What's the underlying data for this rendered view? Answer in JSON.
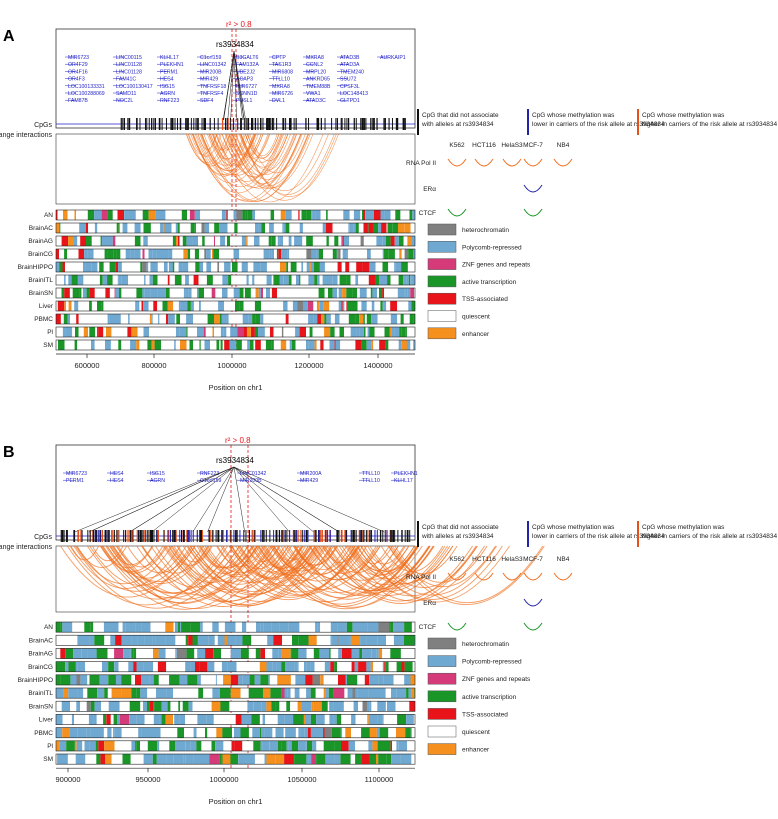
{
  "panels": [
    {
      "letter": "A",
      "r2_label": "r² > 0.8",
      "snp_label": "rs3934834",
      "genes": [
        "MIR6723",
        "OR4F29",
        "OR4F16",
        "OR4F3",
        "LOC100133331",
        "LOC100288069",
        "FAM87B",
        "LINC00115",
        "LINC01128",
        "LINC01128",
        "FAM41C",
        "LOC100130417",
        "SAMD11",
        "NOC2L",
        "KLHL17",
        "PLEKHN1",
        "PERM1",
        "HES4",
        "ISG15",
        "AGRN",
        "RNF223",
        "C1orf159",
        "LINC01342",
        "MIR200B",
        "MIR429",
        "TNFRSF18",
        "TNFRSF4",
        "SDF4",
        "B3GALT6",
        "FAM132A",
        "UBE2J2",
        "ACAP3",
        "MIR6727",
        "SCNN1D",
        "PUSL1",
        "CPTP",
        "TAS1R3",
        "MIR6808",
        "TTLL10",
        "MXRA8",
        "MIR6726",
        "DVL1",
        "MXRA8",
        "CCNL2",
        "MRPL20",
        "ANKRD65",
        "TMEM88B",
        "VWA1",
        "ATAD3C",
        "ATAD3B",
        "ATAD3A",
        "TMEM240",
        "SSU72",
        "CPSF3L",
        "LOC148413",
        "GLTPD1",
        "AURKAIP1"
      ],
      "x_ticks": [
        "600000",
        "800000",
        "1000000",
        "1200000",
        "1400000"
      ],
      "x_label": "Position on chr1"
    },
    {
      "letter": "B",
      "r2_label": "r² > 0.8",
      "snp_label": "rs3934834",
      "genes": [
        "MIR6723",
        "PERM1",
        "HES4",
        "HES4",
        "ISG15",
        "AGRN",
        "RNF223",
        "C1orf159",
        "LINC01342",
        "MIR200B",
        "MIR200A",
        "MIR429",
        "TTLL10",
        "TTLL10",
        "PLEKHN1",
        "KLHL17"
      ],
      "x_ticks": [
        "900000",
        "950000",
        "1000000",
        "1050000",
        "1100000"
      ],
      "x_label": "Position on chr1"
    }
  ],
  "track_labels": {
    "cpg": "CpGs",
    "lri": "Long-range interactions"
  },
  "tissues": [
    "AN",
    "BrainAC",
    "BrainAG",
    "BrainCG",
    "BrainHIPPO",
    "BrainITL",
    "BrainSN",
    "Liver",
    "PBMC",
    "Pl",
    "SM"
  ],
  "cpg_legend": [
    {
      "label": "CpG that did not associate with alleles at rs3934834",
      "color": "#111111"
    },
    {
      "label": "CpG whose methylation was lower in carriers of the risk allele at rs3934834",
      "color": "#2222aa"
    },
    {
      "label": "CpG whose methylation was higher in carriers of the risk allele at rs3934834",
      "color": "#e8501a"
    }
  ],
  "cell_lines": [
    "K562",
    "HCT116",
    "HelaS3",
    "MCF-7",
    "NB4"
  ],
  "interaction_types": [
    "RNA Pol II",
    "ERα",
    "CTCF"
  ],
  "chromatin_states": [
    {
      "label": "heterochromatin",
      "color": "#808080"
    },
    {
      "label": "Polycomb-repressed",
      "color": "#6fa8d0"
    },
    {
      "label": "ZNF genes and repeats",
      "color": "#d63b79"
    },
    {
      "label": "active transcription",
      "color": "#1a9628"
    },
    {
      "label": "TSS-associated",
      "color": "#e8141a"
    },
    {
      "label": "quiescent",
      "color": "#ffffff"
    },
    {
      "label": "enhancer",
      "color": "#f5901e"
    }
  ],
  "colors": {
    "gene_blue": "#2323c8",
    "r2_red": "#e8141a",
    "arc_orange": "#f07020",
    "polii_orange": "#f07020",
    "era_blue": "#2222aa",
    "ctcf_green": "#1a9628"
  }
}
